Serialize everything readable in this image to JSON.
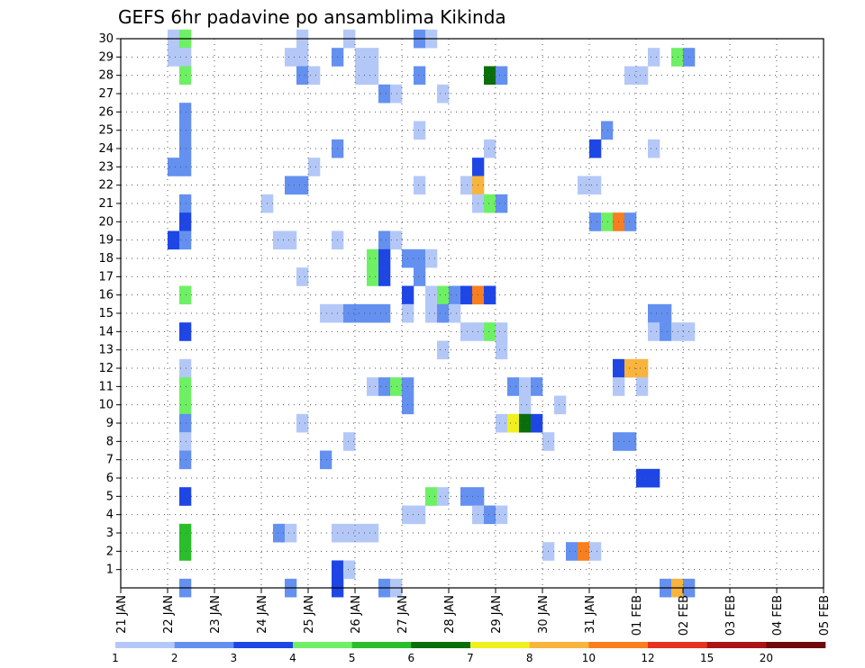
{
  "chart_data": {
    "type": "heatmap",
    "title": "GEFS 6hr padavine po ansamblima Kikinda",
    "xlabel": "",
    "ylabel": "",
    "x_tick_labels": [
      "21 JAN",
      "22 JAN",
      "23 JAN",
      "24 JAN",
      "25 JAN",
      "26 JAN",
      "27 JAN",
      "28 JAN",
      "29 JAN",
      "30 JAN",
      "31 JAN",
      "01 FEB",
      "02 FEB",
      "03 FEB",
      "04 FEB",
      "05 FEB"
    ],
    "y_tick_labels": [
      "1",
      "2",
      "3",
      "4",
      "5",
      "6",
      "7",
      "8",
      "9",
      "10",
      "11",
      "12",
      "13",
      "14",
      "15",
      "16",
      "17",
      "18",
      "19",
      "20",
      "21",
      "22",
      "23",
      "24",
      "25",
      "26",
      "27",
      "28",
      "29",
      "30"
    ],
    "xlim": [
      0,
      60
    ],
    "ylim": [
      0,
      30
    ],
    "grid": true,
    "colorbar": {
      "levels": [
        "1",
        "2",
        "3",
        "4",
        "5",
        "6",
        "7",
        "8",
        "10",
        "12",
        "15",
        "20"
      ],
      "colors": [
        "#b4c8f8",
        "#6490f0",
        "#1e46e6",
        "#6ef064",
        "#2abe2a",
        "#0a6e0a",
        "#f0f01e",
        "#f8b43c",
        "#f87e1e",
        "#e6321e",
        "#aa1414",
        "#6e0a0a"
      ]
    },
    "cells": [
      {
        "x": 4,
        "y": 30,
        "v": 1
      },
      {
        "x": 5,
        "y": 30,
        "v": 4
      },
      {
        "x": 4,
        "y": 29,
        "v": 1
      },
      {
        "x": 5,
        "y": 29,
        "v": 1
      },
      {
        "x": 5,
        "y": 28,
        "v": 4
      },
      {
        "x": 5,
        "y": 26,
        "v": 2
      },
      {
        "x": 5,
        "y": 25,
        "v": 2
      },
      {
        "x": 5,
        "y": 24,
        "v": 2
      },
      {
        "x": 4,
        "y": 23,
        "v": 2
      },
      {
        "x": 5,
        "y": 23,
        "v": 2
      },
      {
        "x": 5,
        "y": 21,
        "v": 2
      },
      {
        "x": 5,
        "y": 20,
        "v": 3
      },
      {
        "x": 4,
        "y": 19,
        "v": 3
      },
      {
        "x": 5,
        "y": 19,
        "v": 2
      },
      {
        "x": 5,
        "y": 16,
        "v": 4
      },
      {
        "x": 5,
        "y": 14,
        "v": 3
      },
      {
        "x": 5,
        "y": 12,
        "v": 1
      },
      {
        "x": 5,
        "y": 11,
        "v": 4
      },
      {
        "x": 5,
        "y": 10,
        "v": 4
      },
      {
        "x": 5,
        "y": 9,
        "v": 2
      },
      {
        "x": 5,
        "y": 8,
        "v": 1
      },
      {
        "x": 5,
        "y": 7,
        "v": 2
      },
      {
        "x": 5,
        "y": 5,
        "v": 3
      },
      {
        "x": 5,
        "y": 3,
        "v": 5
      },
      {
        "x": 5,
        "y": 2,
        "v": 5
      },
      {
        "x": 5,
        "y": 0,
        "v": 2
      },
      {
        "x": 15,
        "y": 30,
        "v": 1
      },
      {
        "x": 14,
        "y": 29,
        "v": 1
      },
      {
        "x": 15,
        "y": 29,
        "v": 1
      },
      {
        "x": 15,
        "y": 28,
        "v": 2
      },
      {
        "x": 16,
        "y": 28,
        "v": 1
      },
      {
        "x": 16,
        "y": 23,
        "v": 1
      },
      {
        "x": 14,
        "y": 22,
        "v": 2
      },
      {
        "x": 15,
        "y": 22,
        "v": 2
      },
      {
        "x": 12,
        "y": 21,
        "v": 1
      },
      {
        "x": 13,
        "y": 19,
        "v": 1
      },
      {
        "x": 14,
        "y": 19,
        "v": 1
      },
      {
        "x": 15,
        "y": 17,
        "v": 1
      },
      {
        "x": 17,
        "y": 15,
        "v": 1
      },
      {
        "x": 15,
        "y": 9,
        "v": 1
      },
      {
        "x": 17,
        "y": 7,
        "v": 2
      },
      {
        "x": 13,
        "y": 3,
        "v": 2
      },
      {
        "x": 14,
        "y": 3,
        "v": 1
      },
      {
        "x": 14,
        "y": 0,
        "v": 2
      },
      {
        "x": 19,
        "y": 30,
        "v": 1
      },
      {
        "x": 18,
        "y": 29,
        "v": 2
      },
      {
        "x": 20,
        "y": 29,
        "v": 1
      },
      {
        "x": 21,
        "y": 29,
        "v": 1
      },
      {
        "x": 20,
        "y": 28,
        "v": 1
      },
      {
        "x": 21,
        "y": 28,
        "v": 1
      },
      {
        "x": 22,
        "y": 27,
        "v": 2
      },
      {
        "x": 23,
        "y": 27,
        "v": 1
      },
      {
        "x": 18,
        "y": 24,
        "v": 2
      },
      {
        "x": 18,
        "y": 19,
        "v": 1
      },
      {
        "x": 22,
        "y": 19,
        "v": 2
      },
      {
        "x": 23,
        "y": 19,
        "v": 1
      },
      {
        "x": 21,
        "y": 18,
        "v": 4
      },
      {
        "x": 22,
        "y": 18,
        "v": 3
      },
      {
        "x": 21,
        "y": 17,
        "v": 4
      },
      {
        "x": 22,
        "y": 17,
        "v": 3
      },
      {
        "x": 18,
        "y": 15,
        "v": 1
      },
      {
        "x": 19,
        "y": 15,
        "v": 2
      },
      {
        "x": 20,
        "y": 15,
        "v": 2
      },
      {
        "x": 21,
        "y": 15,
        "v": 2
      },
      {
        "x": 22,
        "y": 15,
        "v": 2
      },
      {
        "x": 21,
        "y": 11,
        "v": 1
      },
      {
        "x": 22,
        "y": 11,
        "v": 2
      },
      {
        "x": 23,
        "y": 11,
        "v": 4
      },
      {
        "x": 24,
        "y": 11,
        "v": 2
      },
      {
        "x": 19,
        "y": 8,
        "v": 1
      },
      {
        "x": 18,
        "y": 3,
        "v": 1
      },
      {
        "x": 19,
        "y": 3,
        "v": 1
      },
      {
        "x": 20,
        "y": 3,
        "v": 1
      },
      {
        "x": 21,
        "y": 3,
        "v": 1
      },
      {
        "x": 18,
        "y": 1,
        "v": 3
      },
      {
        "x": 19,
        "y": 1,
        "v": 1
      },
      {
        "x": 18,
        "y": 0,
        "v": 3
      },
      {
        "x": 22,
        "y": 0,
        "v": 2
      },
      {
        "x": 23,
        "y": 0,
        "v": 1
      },
      {
        "x": 25,
        "y": 30,
        "v": 2
      },
      {
        "x": 26,
        "y": 30,
        "v": 1
      },
      {
        "x": 25,
        "y": 28,
        "v": 2
      },
      {
        "x": 27,
        "y": 27,
        "v": 1
      },
      {
        "x": 25,
        "y": 25,
        "v": 1
      },
      {
        "x": 25,
        "y": 22,
        "v": 1
      },
      {
        "x": 24,
        "y": 18,
        "v": 2
      },
      {
        "x": 25,
        "y": 18,
        "v": 2
      },
      {
        "x": 26,
        "y": 18,
        "v": 1
      },
      {
        "x": 25,
        "y": 17,
        "v": 2
      },
      {
        "x": 24,
        "y": 16,
        "v": 3
      },
      {
        "x": 24,
        "y": 15,
        "v": 1
      },
      {
        "x": 24,
        "y": 10,
        "v": 2
      },
      {
        "x": 26,
        "y": 16,
        "v": 1
      },
      {
        "x": 27,
        "y": 16,
        "v": 4
      },
      {
        "x": 28,
        "y": 16,
        "v": 2
      },
      {
        "x": 29,
        "y": 16,
        "v": 3
      },
      {
        "x": 26,
        "y": 15,
        "v": 1
      },
      {
        "x": 27,
        "y": 15,
        "v": 2
      },
      {
        "x": 28,
        "y": 15,
        "v": 1
      },
      {
        "x": 24,
        "y": 4,
        "v": 1
      },
      {
        "x": 25,
        "y": 4,
        "v": 1
      },
      {
        "x": 26,
        "y": 5,
        "v": 4
      },
      {
        "x": 27,
        "y": 5,
        "v": 1
      },
      {
        "x": 27,
        "y": 13,
        "v": 1
      },
      {
        "x": 31,
        "y": 28,
        "v": 6
      },
      {
        "x": 32,
        "y": 28,
        "v": 2
      },
      {
        "x": 31,
        "y": 24,
        "v": 1
      },
      {
        "x": 30,
        "y": 23,
        "v": 3
      },
      {
        "x": 29,
        "y": 22,
        "v": 1
      },
      {
        "x": 30,
        "y": 22,
        "v": 8
      },
      {
        "x": 30,
        "y": 21,
        "v": 1
      },
      {
        "x": 31,
        "y": 21,
        "v": 4
      },
      {
        "x": 32,
        "y": 21,
        "v": 2
      },
      {
        "x": 30,
        "y": 16,
        "v": 9
      },
      {
        "x": 31,
        "y": 16,
        "v": 3
      },
      {
        "x": 29,
        "y": 14,
        "v": 1
      },
      {
        "x": 30,
        "y": 14,
        "v": 1
      },
      {
        "x": 31,
        "y": 14,
        "v": 4
      },
      {
        "x": 32,
        "y": 14,
        "v": 1
      },
      {
        "x": 32,
        "y": 13,
        "v": 1
      },
      {
        "x": 33,
        "y": 11,
        "v": 2
      },
      {
        "x": 34,
        "y": 11,
        "v": 1
      },
      {
        "x": 35,
        "y": 11,
        "v": 2
      },
      {
        "x": 34,
        "y": 10,
        "v": 1
      },
      {
        "x": 32,
        "y": 9,
        "v": 1
      },
      {
        "x": 33,
        "y": 9,
        "v": 7
      },
      {
        "x": 34,
        "y": 9,
        "v": 6
      },
      {
        "x": 35,
        "y": 9,
        "v": 3
      },
      {
        "x": 29,
        "y": 5,
        "v": 2
      },
      {
        "x": 30,
        "y": 5,
        "v": 2
      },
      {
        "x": 30,
        "y": 4,
        "v": 1
      },
      {
        "x": 31,
        "y": 4,
        "v": 2
      },
      {
        "x": 32,
        "y": 4,
        "v": 1
      },
      {
        "x": 37,
        "y": 10,
        "v": 1
      },
      {
        "x": 36,
        "y": 8,
        "v": 1
      },
      {
        "x": 36,
        "y": 2,
        "v": 1
      },
      {
        "x": 38,
        "y": 2,
        "v": 2
      },
      {
        "x": 39,
        "y": 2,
        "v": 9
      },
      {
        "x": 40,
        "y": 2,
        "v": 1
      },
      {
        "x": 39,
        "y": 22,
        "v": 1
      },
      {
        "x": 40,
        "y": 22,
        "v": 1
      },
      {
        "x": 40,
        "y": 24,
        "v": 3
      },
      {
        "x": 41,
        "y": 25,
        "v": 2
      },
      {
        "x": 40,
        "y": 20,
        "v": 2
      },
      {
        "x": 41,
        "y": 20,
        "v": 4
      },
      {
        "x": 42,
        "y": 20,
        "v": 9
      },
      {
        "x": 43,
        "y": 20,
        "v": 2
      },
      {
        "x": 42,
        "y": 12,
        "v": 3
      },
      {
        "x": 43,
        "y": 12,
        "v": 8
      },
      {
        "x": 44,
        "y": 12,
        "v": 8
      },
      {
        "x": 42,
        "y": 11,
        "v": 1
      },
      {
        "x": 44,
        "y": 11,
        "v": 1
      },
      {
        "x": 42,
        "y": 8,
        "v": 2
      },
      {
        "x": 43,
        "y": 8,
        "v": 2
      },
      {
        "x": 44,
        "y": 6,
        "v": 3
      },
      {
        "x": 45,
        "y": 6,
        "v": 3
      },
      {
        "x": 43,
        "y": 28,
        "v": 1
      },
      {
        "x": 44,
        "y": 28,
        "v": 1
      },
      {
        "x": 45,
        "y": 29,
        "v": 1
      },
      {
        "x": 45,
        "y": 24,
        "v": 1
      },
      {
        "x": 45,
        "y": 15,
        "v": 2
      },
      {
        "x": 46,
        "y": 15,
        "v": 2
      },
      {
        "x": 45,
        "y": 14,
        "v": 1
      },
      {
        "x": 46,
        "y": 14,
        "v": 2
      },
      {
        "x": 47,
        "y": 14,
        "v": 1
      },
      {
        "x": 48,
        "y": 14,
        "v": 1
      },
      {
        "x": 47,
        "y": 29,
        "v": 4
      },
      {
        "x": 48,
        "y": 29,
        "v": 2
      },
      {
        "x": 46,
        "y": 0,
        "v": 2
      },
      {
        "x": 47,
        "y": 0,
        "v": 8
      },
      {
        "x": 48,
        "y": 0,
        "v": 2
      }
    ]
  }
}
